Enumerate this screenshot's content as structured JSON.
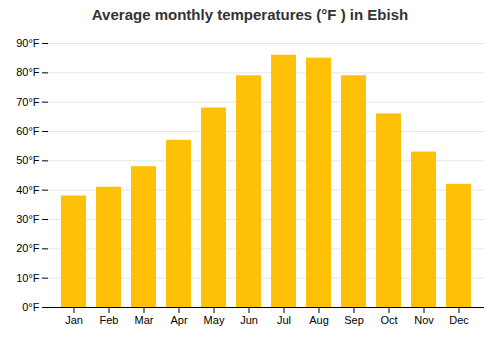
{
  "chart_data": {
    "type": "bar",
    "title": "Average monthly temperatures (°F ) in Ebish",
    "categories": [
      "Jan",
      "Feb",
      "Mar",
      "Apr",
      "May",
      "Jun",
      "Jul",
      "Aug",
      "Sep",
      "Oct",
      "Nov",
      "Dec"
    ],
    "values": [
      38,
      41,
      48,
      57,
      68,
      79,
      86,
      85,
      79,
      66,
      53,
      42
    ],
    "color": "#FFC107",
    "ylim": [
      0,
      90
    ],
    "yticks": [
      {
        "value": 0,
        "label": "0°F"
      },
      {
        "value": 10,
        "label": "10°F"
      },
      {
        "value": 20,
        "label": "20°F"
      },
      {
        "value": 30,
        "label": "30°F"
      },
      {
        "value": 40,
        "label": "40°F"
      },
      {
        "value": 50,
        "label": "50°F"
      },
      {
        "value": 60,
        "label": "60°F"
      },
      {
        "value": 70,
        "label": "70°F"
      },
      {
        "value": 80,
        "label": "80°F"
      },
      {
        "value": 90,
        "label": "90°F"
      }
    ],
    "grid": true
  }
}
